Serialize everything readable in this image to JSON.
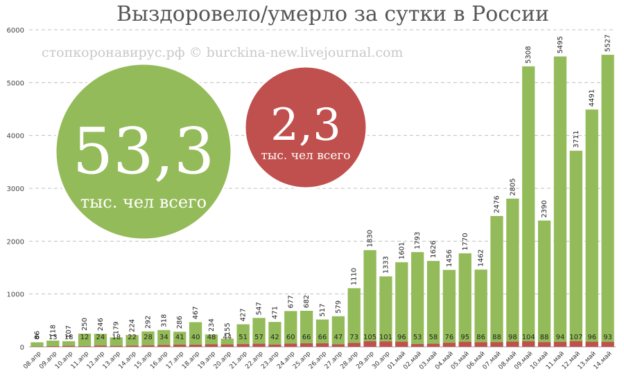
{
  "chart_data": {
    "type": "bar",
    "title": "Выздоровело/умерло за сутки в России",
    "subtitle": "стопкоронавирус.рф © burckina-new.livejournal.com",
    "categories": [
      "08.апр",
      "09.апр",
      "10.апр",
      "11.апр",
      "12.апр",
      "13.апр",
      "14.апр",
      "15.апр",
      "16.апр",
      "17.апр",
      "18.апр",
      "19.апр",
      "20.апр",
      "21.апр",
      "22.апр",
      "23.апр",
      "24.апр",
      "25.апр",
      "26.апр",
      "27.апр",
      "28.апр",
      "29.апр",
      "30.апр",
      "01.май",
      "02.май",
      "03.май",
      "04.май",
      "05.май",
      "06.май",
      "07.май",
      "08.май",
      "09.май",
      "10.май",
      "11.май",
      "12.май",
      "13.май",
      "14.май"
    ],
    "series": [
      {
        "values": [
          86,
          118,
          107,
          250,
          246,
          179,
          224,
          292,
          318,
          286,
          467,
          234,
          155,
          427,
          547,
          471,
          677,
          682,
          517,
          579,
          1110,
          1830,
          1333,
          1601,
          1793,
          1626,
          1456,
          1770,
          1462,
          2476,
          2805,
          5308,
          2390,
          5495,
          3711,
          4491,
          5527
        ],
        "color": "#94bb59"
      },
      {
        "values": [
          6,
          13,
          18,
          12,
          24,
          18,
          22,
          28,
          34,
          41,
          40,
          48,
          44,
          51,
          57,
          42,
          60,
          66,
          66,
          47,
          73,
          105,
          101,
          96,
          53,
          58,
          76,
          95,
          86,
          88,
          98,
          104,
          88,
          94,
          107,
          96,
          93
        ],
        "color": "#c0504d"
      }
    ],
    "ylim": [
      0,
      6000
    ],
    "yticks": [
      0,
      1000,
      2000,
      3000,
      4000,
      5000,
      6000
    ],
    "grid": true,
    "annotations": [
      {
        "value": "53,3",
        "text": "тыс. чел всего",
        "color": "#94bb59"
      },
      {
        "value": "2,3",
        "text": "тыс. чел всего",
        "color": "#c0504d"
      }
    ]
  }
}
